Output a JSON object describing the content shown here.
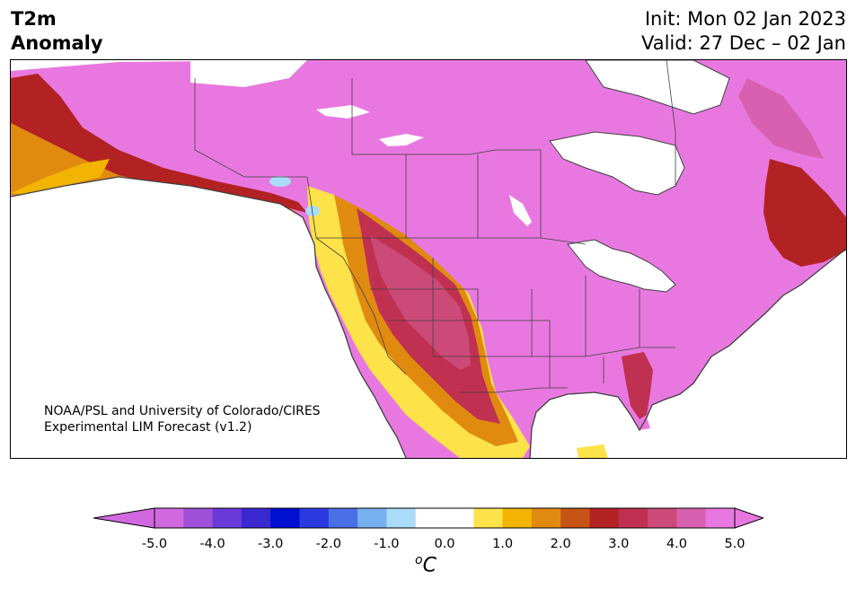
{
  "header": {
    "title_line1": "T2m",
    "title_line2": "Anomaly",
    "init_text": "Init: Mon 02 Jan 2023",
    "valid_text": "Valid: 27 Dec – 02 Jan"
  },
  "credit": {
    "line1": "NOAA/PSL and University of Colorado/CIRES",
    "line2": "Experimental LIM Forecast (v1.2)"
  },
  "colorbar": {
    "unit_base": "C",
    "unit_sup": "o",
    "ticks": [
      "-5.0",
      "-4.0",
      "-3.0",
      "-2.0",
      "-1.0",
      "0.0",
      "1.0",
      "2.0",
      "3.0",
      "4.0",
      "5.0"
    ],
    "colors": [
      "#d268e0",
      "#a050d8",
      "#6a3ad8",
      "#3a28d0",
      "#0010d0",
      "#2a3ae0",
      "#4a70e8",
      "#78b0f0",
      "#aadcf8",
      "#ffffff",
      "#ffffff",
      "#fde24a",
      "#f2b400",
      "#e08a10",
      "#c65414",
      "#b22222",
      "#c03050",
      "#cc4a78",
      "#d860b0",
      "#e878e0"
    ]
  },
  "map": {
    "ocean_color": "#ffffff",
    "land_base_color": "#e878e0",
    "coastline_color": "#404040"
  }
}
